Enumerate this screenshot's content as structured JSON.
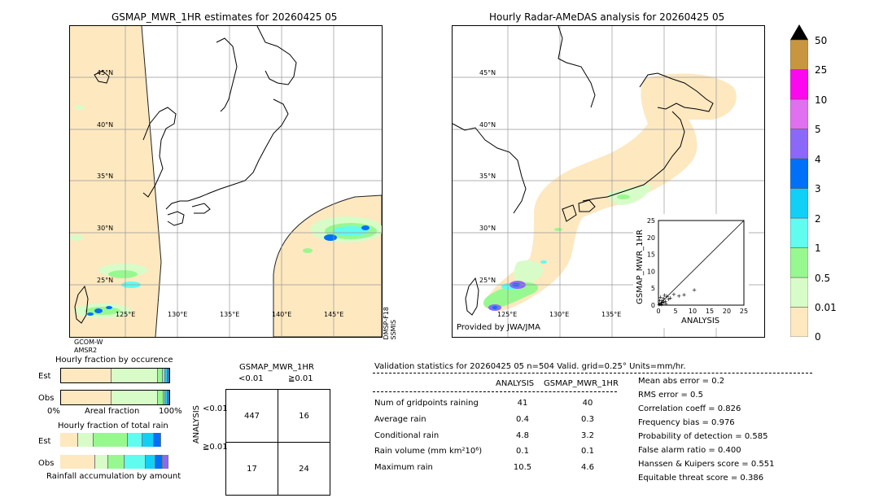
{
  "left_map": {
    "title": "GSMAP_MWR_1HR estimates for 20260425 05",
    "lat_labels": [
      "45°N",
      "40°N",
      "35°N",
      "30°N",
      "25°N"
    ],
    "lon_labels": [
      "125°E",
      "130°E",
      "135°E",
      "140°E",
      "145°E"
    ],
    "side_label": "DMSP-F18\nSSMIS",
    "bottom_label_1": "GCOM-W",
    "bottom_label_2": "AMSR2"
  },
  "right_map": {
    "title": "Hourly Radar-AMeDAS analysis for 20260425 05",
    "lat_labels": [
      "45°N",
      "40°N",
      "35°N",
      "30°N",
      "25°N"
    ],
    "lon_labels": [
      "125°E",
      "130°E",
      "135°E"
    ],
    "credit": "Provided by JWA/JMA"
  },
  "scatter": {
    "xlabel": "ANALYSIS",
    "ylabel": "GSMAP_MWR_1HR",
    "ticks": [
      "0",
      "5",
      "10",
      "15",
      "20",
      "25"
    ]
  },
  "colorbar": {
    "levels": [
      "0",
      "0.01",
      "0.5",
      "1",
      "2",
      "3",
      "4",
      "5",
      "10",
      "25",
      "50"
    ],
    "colors": [
      "#fde8c0",
      "#d8fcc8",
      "#98f890",
      "#60fcf0",
      "#10d0f8",
      "#0070f8",
      "#8c68f8",
      "#e070f0",
      "#fc08f0",
      "#c89640",
      "#000000"
    ]
  },
  "occurrence": {
    "title": "Hourly fraction by occurence",
    "row_est": "Est",
    "row_obs": "Obs",
    "axis_left": "0%",
    "axis_mid": "Areal fraction",
    "axis_right": "100%"
  },
  "total_rain": {
    "title": "Hourly fraction of total rain",
    "row_est": "Est",
    "row_obs": "Obs",
    "footer": "Rainfall accumulation by amount"
  },
  "contingency": {
    "title": "GSMAP_MWR_1HR",
    "col1": "<0.01",
    "col2": "≧0.01",
    "row_axis": "ANALYSIS",
    "row1": "<0.01",
    "row2": "≧0.01",
    "cells": [
      "447",
      "16",
      "17",
      "24"
    ]
  },
  "validation": {
    "header": "Validation statistics for 20260425 05   n=504 Valid. grid=0.25° Units=mm/hr.",
    "col_analysis": "ANALYSIS",
    "col_gsmap": "GSMAP_MWR_1HR",
    "rows": [
      {
        "label": "Num of gridpoints raining",
        "analysis": "41",
        "gsmap": "40"
      },
      {
        "label": "Average rain",
        "analysis": "0.4",
        "gsmap": "0.3"
      },
      {
        "label": "Conditional rain",
        "analysis": "4.8",
        "gsmap": "3.2"
      },
      {
        "label": "Rain volume (mm km²10⁶)",
        "analysis": "0.1",
        "gsmap": "0.1"
      },
      {
        "label": "Maximum rain",
        "analysis": "10.5",
        "gsmap": "4.6"
      }
    ],
    "scores": [
      "Mean abs error =    0.2",
      "RMS error =    0.5",
      "Correlation coeff =  0.826",
      "Frequency bias =  0.976",
      "Probability of detection =  0.585",
      "False alarm ratio =  0.400",
      "Hanssen & Kuipers score =  0.551",
      "Equitable threat score =  0.386"
    ]
  },
  "chart_data": [
    {
      "type": "scatter",
      "xlabel": "ANALYSIS",
      "ylabel": "GSMAP_MWR_1HR",
      "xlim": [
        0,
        25
      ],
      "ylim": [
        0,
        25
      ],
      "points": [
        [
          0.2,
          0.3
        ],
        [
          0.5,
          0.4
        ],
        [
          0.8,
          0.6
        ],
        [
          1.0,
          1.4
        ],
        [
          1.2,
          0.8
        ],
        [
          1.5,
          2.0
        ],
        [
          2.0,
          1.2
        ],
        [
          2.5,
          2.6
        ],
        [
          3.0,
          1.8
        ],
        [
          0.4,
          1.5
        ],
        [
          1.8,
          3.0
        ],
        [
          3.5,
          2.2
        ],
        [
          4.5,
          3.2
        ],
        [
          6.0,
          2.8
        ],
        [
          7.5,
          3.1
        ],
        [
          10.5,
          4.6
        ],
        [
          0.6,
          2.4
        ],
        [
          2.2,
          0.5
        ],
        [
          0.9,
          0.2
        ],
        [
          1.6,
          1.0
        ]
      ]
    },
    {
      "type": "bar",
      "title": "Hourly fraction by occurence",
      "categories": [
        "Est",
        "Obs"
      ],
      "series": [
        {
          "values": [
            0.48,
            0.48
          ]
        },
        {
          "values": [
            0.44,
            0.44
          ]
        },
        {
          "values": [
            0.04,
            0.05
          ]
        },
        {
          "values": [
            0.02,
            0.01
          ]
        },
        {
          "values": [
            0.015,
            0.01
          ]
        },
        {
          "values": [
            0.005,
            0.01
          ]
        }
      ]
    },
    {
      "type": "bar",
      "title": "Hourly fraction of total rain",
      "categories": [
        "Est",
        "Obs"
      ],
      "series": [
        {
          "values": [
            0.16,
            0.33
          ]
        },
        {
          "values": [
            0.13,
            0.12
          ]
        },
        {
          "values": [
            0.31,
            0.15
          ]
        },
        {
          "values": [
            0.13,
            0.2
          ]
        },
        {
          "values": [
            0.1,
            0.09
          ]
        },
        {
          "values": [
            0.06,
            0.06
          ]
        },
        {
          "values": [
            0.0,
            0.05
          ]
        }
      ]
    }
  ]
}
